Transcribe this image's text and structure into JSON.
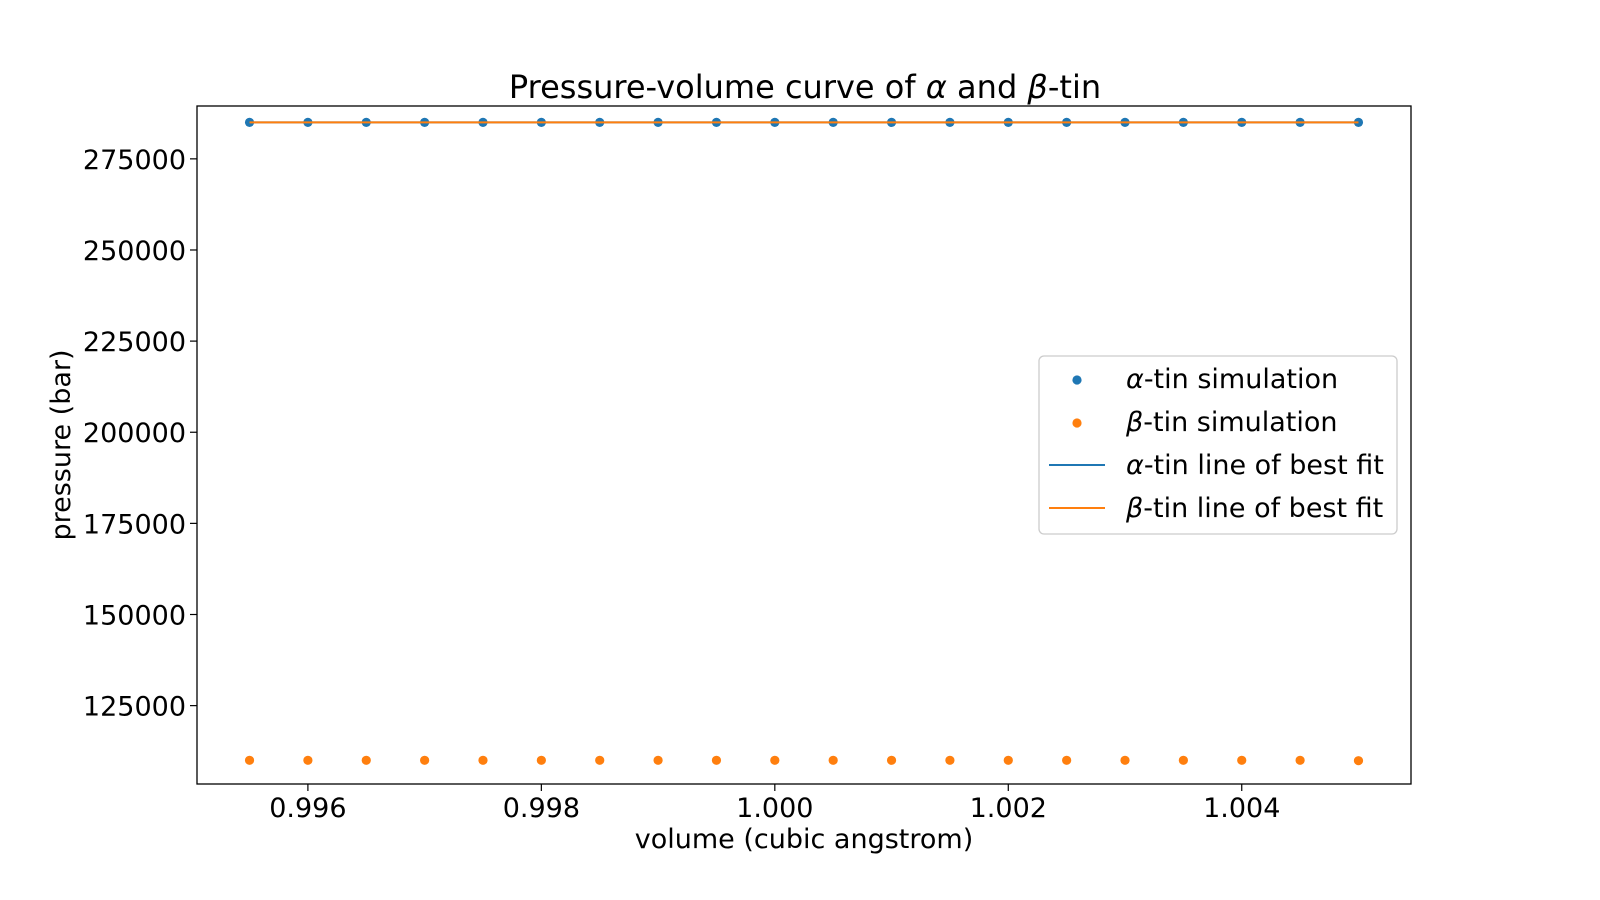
{
  "chart_data": {
    "type": "scatter",
    "title": {
      "pre": "Pressure-volume curve of ",
      "sym1": "α",
      "mid": " and ",
      "sym2": "β",
      "post": "-tin"
    },
    "xlabel": "volume (cubic angstrom)",
    "ylabel": "pressure (bar)",
    "xlim": [
      0.99505,
      1.00545
    ],
    "ylim": [
      103500,
      289500
    ],
    "xticks": [
      0.996,
      0.998,
      1.0,
      1.002,
      1.004
    ],
    "xtick_labels": [
      "0.996",
      "0.998",
      "1.000",
      "1.002",
      "1.004"
    ],
    "yticks": [
      125000,
      150000,
      175000,
      200000,
      225000,
      250000,
      275000
    ],
    "ytick_labels": [
      "125000",
      "150000",
      "175000",
      "200000",
      "225000",
      "250000",
      "275000"
    ],
    "grid": false,
    "legend_position": "center-right",
    "series": [
      {
        "name": "α-tin simulation",
        "legend_sym": "α",
        "legend_rest": "-tin simulation",
        "kind": "scatter",
        "color": "#1f77b4",
        "x": [
          0.9955,
          0.996,
          0.9965,
          0.997,
          0.9975,
          0.998,
          0.9985,
          0.999,
          0.9995,
          1.0,
          1.0005,
          1.001,
          1.0015,
          1.002,
          1.0025,
          1.003,
          1.0035,
          1.004,
          1.0045,
          1.005
        ],
        "y": [
          285000,
          285000,
          285000,
          285000,
          285000,
          285000,
          285000,
          285000,
          285000,
          285000,
          285000,
          285000,
          285000,
          285000,
          285000,
          285000,
          285000,
          285000,
          285000,
          285000
        ]
      },
      {
        "name": "β-tin simulation",
        "legend_sym": "β",
        "legend_rest": "-tin simulation",
        "kind": "scatter",
        "color": "#ff7f0e",
        "x": [
          0.9955,
          0.996,
          0.9965,
          0.997,
          0.9975,
          0.998,
          0.9985,
          0.999,
          0.9995,
          1.0,
          1.0005,
          1.001,
          1.0015,
          1.002,
          1.0025,
          1.003,
          1.0035,
          1.004,
          1.0045,
          1.005
        ],
        "y": [
          110000,
          110000,
          110000,
          110000,
          110000,
          110000,
          110000,
          110000,
          110000,
          110000,
          110000,
          110000,
          110000,
          110000,
          110000,
          110000,
          110000,
          110000,
          110000,
          109900
        ]
      },
      {
        "name": "α-tin line of best fit",
        "legend_sym": "α",
        "legend_rest": "-tin line of best fit",
        "kind": "line",
        "color": "#1f77b4",
        "x": [
          0.9955,
          1.005
        ],
        "y": [
          285000,
          285000
        ]
      },
      {
        "name": "β-tin line of best fit",
        "legend_sym": "β",
        "legend_rest": "-tin line of best fit",
        "kind": "line",
        "color": "#ff7f0e",
        "x": [
          0.9955,
          1.005
        ],
        "y": [
          285000,
          285000
        ]
      }
    ]
  }
}
